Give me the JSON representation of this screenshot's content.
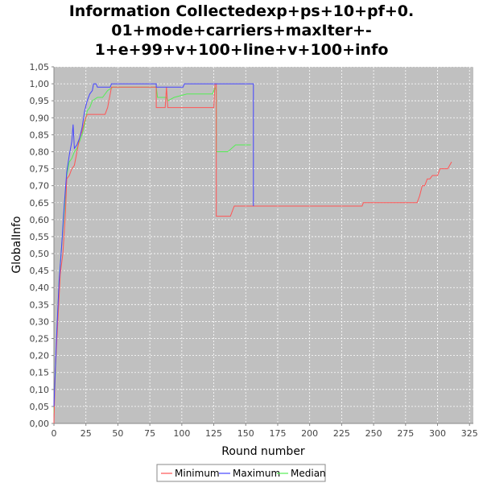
{
  "chart_data": {
    "type": "line",
    "title_lines": [
      "Information Collectedexp+ps+10+pf+0.",
      "01+mode+carriers+maxIter+-",
      "1+e+99+v+100+line+v+100+info"
    ],
    "xlabel": "Round number",
    "ylabel": "GlobalInfo",
    "xlim": [
      0,
      328
    ],
    "ylim": [
      0,
      1.05
    ],
    "x_ticks": [
      0,
      25,
      50,
      75,
      100,
      125,
      150,
      175,
      200,
      225,
      250,
      275,
      300,
      325
    ],
    "y_ticks": [
      "0,00",
      "0,05",
      "0,10",
      "0,15",
      "0,20",
      "0,25",
      "0,30",
      "0,35",
      "0,40",
      "0,45",
      "0,50",
      "0,55",
      "0,60",
      "0,65",
      "0,70",
      "0,75",
      "0,80",
      "0,85",
      "0,90",
      "0,95",
      "1,00",
      "1,05"
    ],
    "grid": true,
    "legend_position": "bottom",
    "plot_background": "#c0c0c0",
    "series": [
      {
        "name": "Minimum",
        "color": "#ff5555",
        "points": [
          [
            0,
            0.0
          ],
          [
            1,
            0.15
          ],
          [
            3,
            0.3
          ],
          [
            5,
            0.44
          ],
          [
            7,
            0.5
          ],
          [
            9,
            0.62
          ],
          [
            10,
            0.72
          ],
          [
            12,
            0.73
          ],
          [
            14,
            0.75
          ],
          [
            16,
            0.76
          ],
          [
            18,
            0.8
          ],
          [
            20,
            0.84
          ],
          [
            22,
            0.86
          ],
          [
            24,
            0.89
          ],
          [
            26,
            0.91
          ],
          [
            40,
            0.91
          ],
          [
            42,
            0.93
          ],
          [
            44,
            0.97
          ],
          [
            45,
            0.99
          ],
          [
            80,
            0.99
          ],
          [
            80,
            0.93
          ],
          [
            87,
            0.93
          ],
          [
            88,
            0.99
          ],
          [
            89,
            0.93
          ],
          [
            125,
            0.93
          ],
          [
            126,
            1.0
          ],
          [
            127,
            1.0
          ],
          [
            127,
            0.61
          ],
          [
            138,
            0.61
          ],
          [
            141,
            0.64
          ],
          [
            241,
            0.64
          ],
          [
            242,
            0.65
          ],
          [
            284,
            0.65
          ],
          [
            286,
            0.67
          ],
          [
            288,
            0.7
          ],
          [
            290,
            0.7
          ],
          [
            292,
            0.72
          ],
          [
            294,
            0.72
          ],
          [
            296,
            0.73
          ],
          [
            300,
            0.73
          ],
          [
            302,
            0.75
          ],
          [
            308,
            0.75
          ],
          [
            311,
            0.77
          ]
        ]
      },
      {
        "name": "Maximum",
        "color": "#4444ff",
        "points": [
          [
            0,
            0.05
          ],
          [
            2,
            0.25
          ],
          [
            4,
            0.42
          ],
          [
            6,
            0.52
          ],
          [
            8,
            0.64
          ],
          [
            10,
            0.74
          ],
          [
            12,
            0.79
          ],
          [
            14,
            0.83
          ],
          [
            15,
            0.88
          ],
          [
            16,
            0.81
          ],
          [
            18,
            0.82
          ],
          [
            20,
            0.84
          ],
          [
            22,
            0.87
          ],
          [
            24,
            0.92
          ],
          [
            26,
            0.95
          ],
          [
            28,
            0.97
          ],
          [
            30,
            0.98
          ],
          [
            31,
            1.0
          ],
          [
            33,
            1.0
          ],
          [
            34,
            0.99
          ],
          [
            44,
            0.99
          ],
          [
            45,
            1.0
          ],
          [
            80,
            1.0
          ],
          [
            80,
            0.99
          ],
          [
            101,
            0.99
          ],
          [
            102,
            1.0
          ],
          [
            127,
            1.0
          ],
          [
            156,
            1.0
          ],
          [
            156,
            0.64
          ]
        ]
      },
      {
        "name": "Median",
        "color": "#55ee55",
        "points": [
          [
            0,
            0.03
          ],
          [
            2,
            0.24
          ],
          [
            4,
            0.42
          ],
          [
            6,
            0.52
          ],
          [
            8,
            0.62
          ],
          [
            10,
            0.73
          ],
          [
            12,
            0.77
          ],
          [
            14,
            0.78
          ],
          [
            16,
            0.8
          ],
          [
            18,
            0.81
          ],
          [
            20,
            0.83
          ],
          [
            22,
            0.85
          ],
          [
            24,
            0.88
          ],
          [
            26,
            0.92
          ],
          [
            28,
            0.93
          ],
          [
            30,
            0.95
          ],
          [
            34,
            0.96
          ],
          [
            38,
            0.96
          ],
          [
            42,
            0.98
          ],
          [
            46,
            0.99
          ],
          [
            80,
            0.99
          ],
          [
            81,
            0.96
          ],
          [
            88,
            0.96
          ],
          [
            89,
            0.95
          ],
          [
            94,
            0.96
          ],
          [
            104,
            0.97
          ],
          [
            124,
            0.97
          ],
          [
            126,
            0.99
          ],
          [
            127,
            0.98
          ],
          [
            127,
            0.8
          ],
          [
            136,
            0.8
          ],
          [
            142,
            0.82
          ],
          [
            154,
            0.82
          ]
        ]
      }
    ]
  }
}
